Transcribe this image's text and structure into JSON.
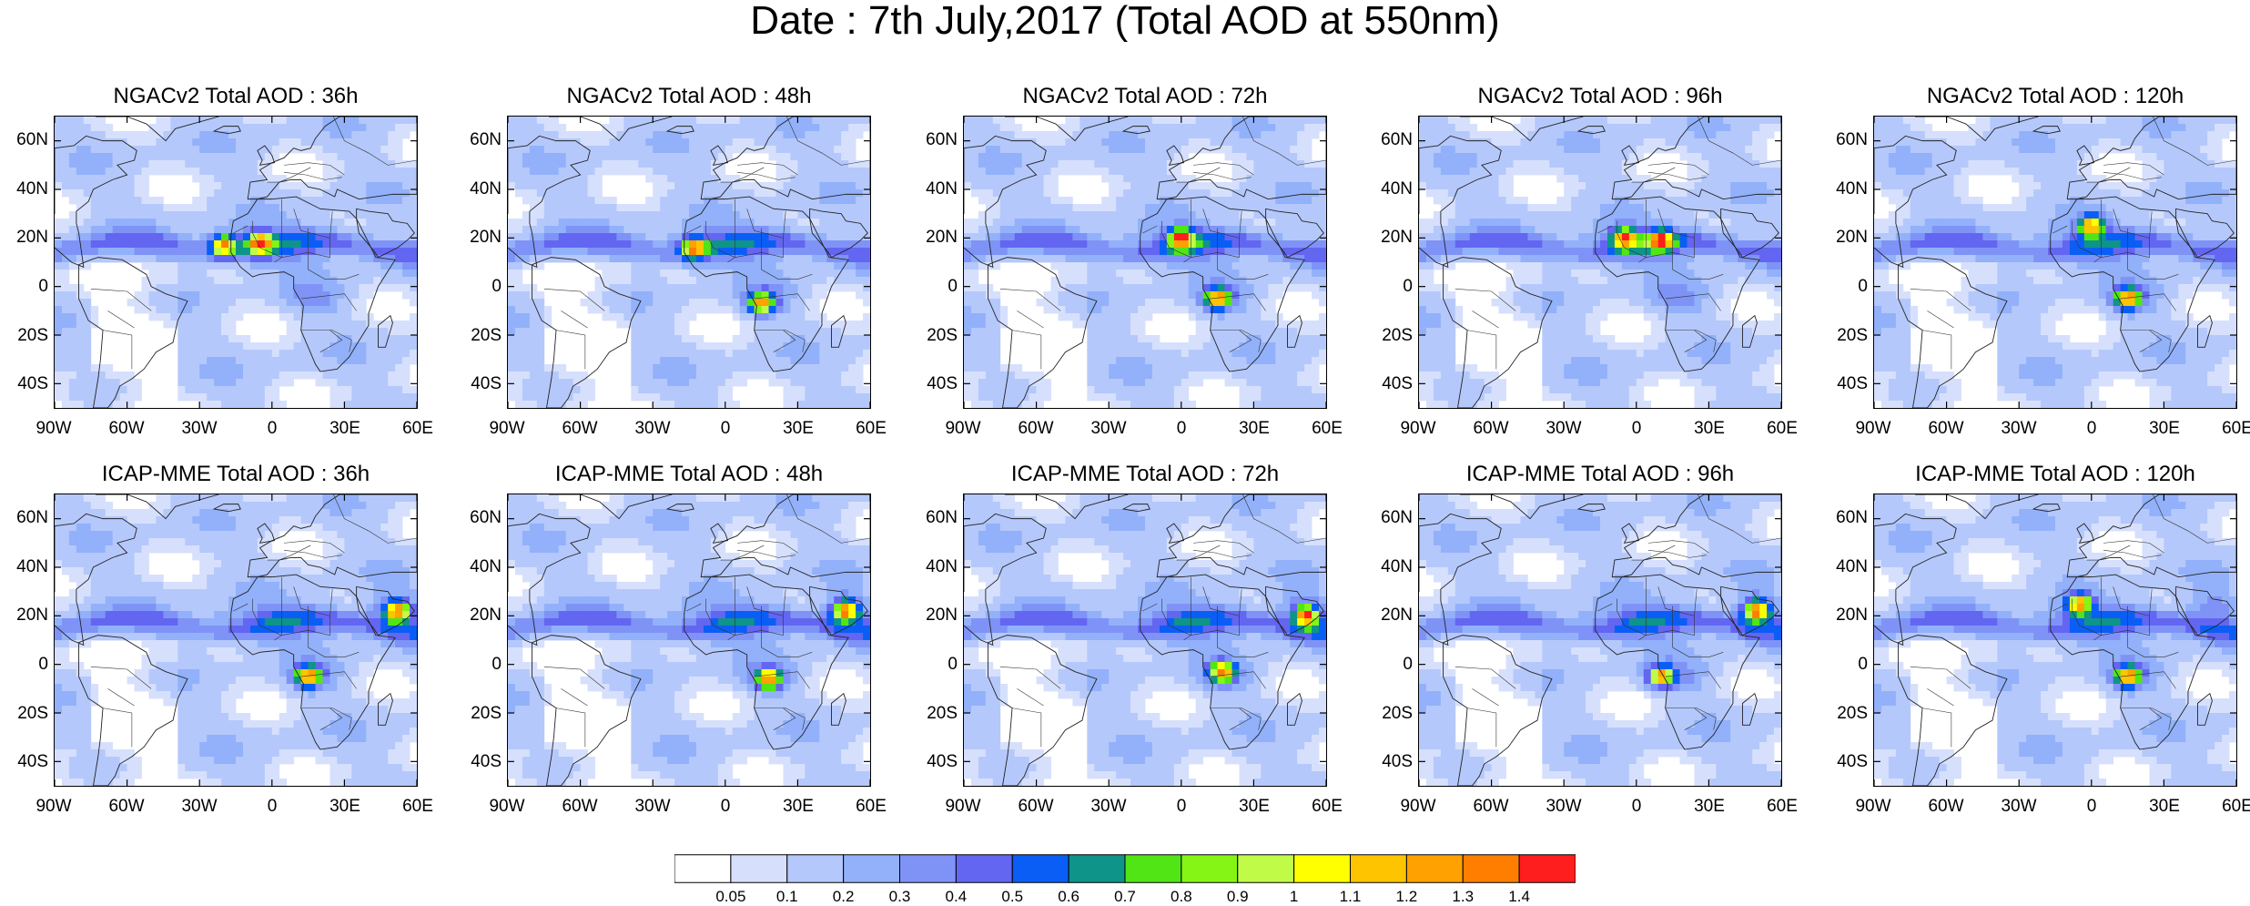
{
  "title": "Date : 7th July,2017 (Total AOD at 550nm)",
  "panels": [
    {
      "title": "NGACv2 Total AOD : 36h",
      "model": "NGACv2",
      "lead": "36h",
      "level": "low",
      "hot": [
        [
          -5,
          18
        ],
        [
          -20,
          17
        ]
      ]
    },
    {
      "title": "NGACv2 Total AOD : 48h",
      "model": "NGACv2",
      "lead": "48h",
      "level": "low",
      "hot": [
        [
          -13,
          16
        ],
        [
          15,
          -7
        ]
      ]
    },
    {
      "title": "NGACv2 Total AOD : 72h",
      "model": "NGACv2",
      "lead": "72h",
      "level": "low",
      "hot": [
        [
          0,
          20
        ],
        [
          15,
          -5
        ]
      ]
    },
    {
      "title": "NGACv2 Total AOD : 96h",
      "model": "NGACv2",
      "lead": "96h",
      "level": "low",
      "hot": [
        [
          -5,
          20
        ],
        [
          10,
          19
        ]
      ]
    },
    {
      "title": "NGACv2 Total AOD : 120h",
      "model": "NGACv2",
      "lead": "120h",
      "level": "low",
      "hot": [
        [
          0,
          25
        ],
        [
          15,
          -5
        ]
      ]
    },
    {
      "title": "ICAP-MME Total AOD : 36h",
      "model": "ICAP-MME",
      "lead": "36h",
      "level": "high",
      "hot": [
        [
          15,
          -5
        ],
        [
          52,
          22
        ]
      ]
    },
    {
      "title": "ICAP-MME Total AOD : 48h",
      "model": "ICAP-MME",
      "lead": "48h",
      "level": "high",
      "hot": [
        [
          18,
          -6
        ],
        [
          50,
          22
        ]
      ]
    },
    {
      "title": "ICAP-MME Total AOD : 72h",
      "model": "ICAP-MME",
      "lead": "72h",
      "level": "high",
      "hot": [
        [
          17,
          -3
        ],
        [
          52,
          20
        ]
      ]
    },
    {
      "title": "ICAP-MME Total AOD : 96h",
      "model": "ICAP-MME",
      "lead": "96h",
      "level": "high",
      "hot": [
        [
          10,
          -5
        ],
        [
          50,
          22
        ]
      ]
    },
    {
      "title": "ICAP-MME Total AOD : 120h",
      "model": "ICAP-MME",
      "lead": "120h",
      "level": "high",
      "hot": [
        [
          -5,
          25
        ],
        [
          15,
          -5
        ]
      ]
    }
  ],
  "map_extent": {
    "lon": [
      -90,
      60
    ],
    "lat": [
      -50,
      70
    ]
  },
  "lat_ticks": [
    "60N",
    "40N",
    "20N",
    "0",
    "20S",
    "40S"
  ],
  "lon_ticks": [
    "90W",
    "60W",
    "30W",
    "0",
    "30E",
    "60E"
  ],
  "colorbar": {
    "levels": [
      "0.05",
      "0.1",
      "0.2",
      "0.3",
      "0.4",
      "0.5",
      "0.6",
      "0.7",
      "0.8",
      "0.9",
      "1",
      "1.1",
      "1.2",
      "1.3",
      "1.4"
    ],
    "colors": [
      "#ffffff",
      "#d6e0fd",
      "#b5c8fb",
      "#92b1fa",
      "#7f93f7",
      "#6366f1",
      "#0a5ef5",
      "#0e9488",
      "#52e515",
      "#84f515",
      "#c0fb48",
      "#ffff00",
      "#ffc400",
      "#ffa100",
      "#ff7e00",
      "#ff1e1e"
    ]
  }
}
